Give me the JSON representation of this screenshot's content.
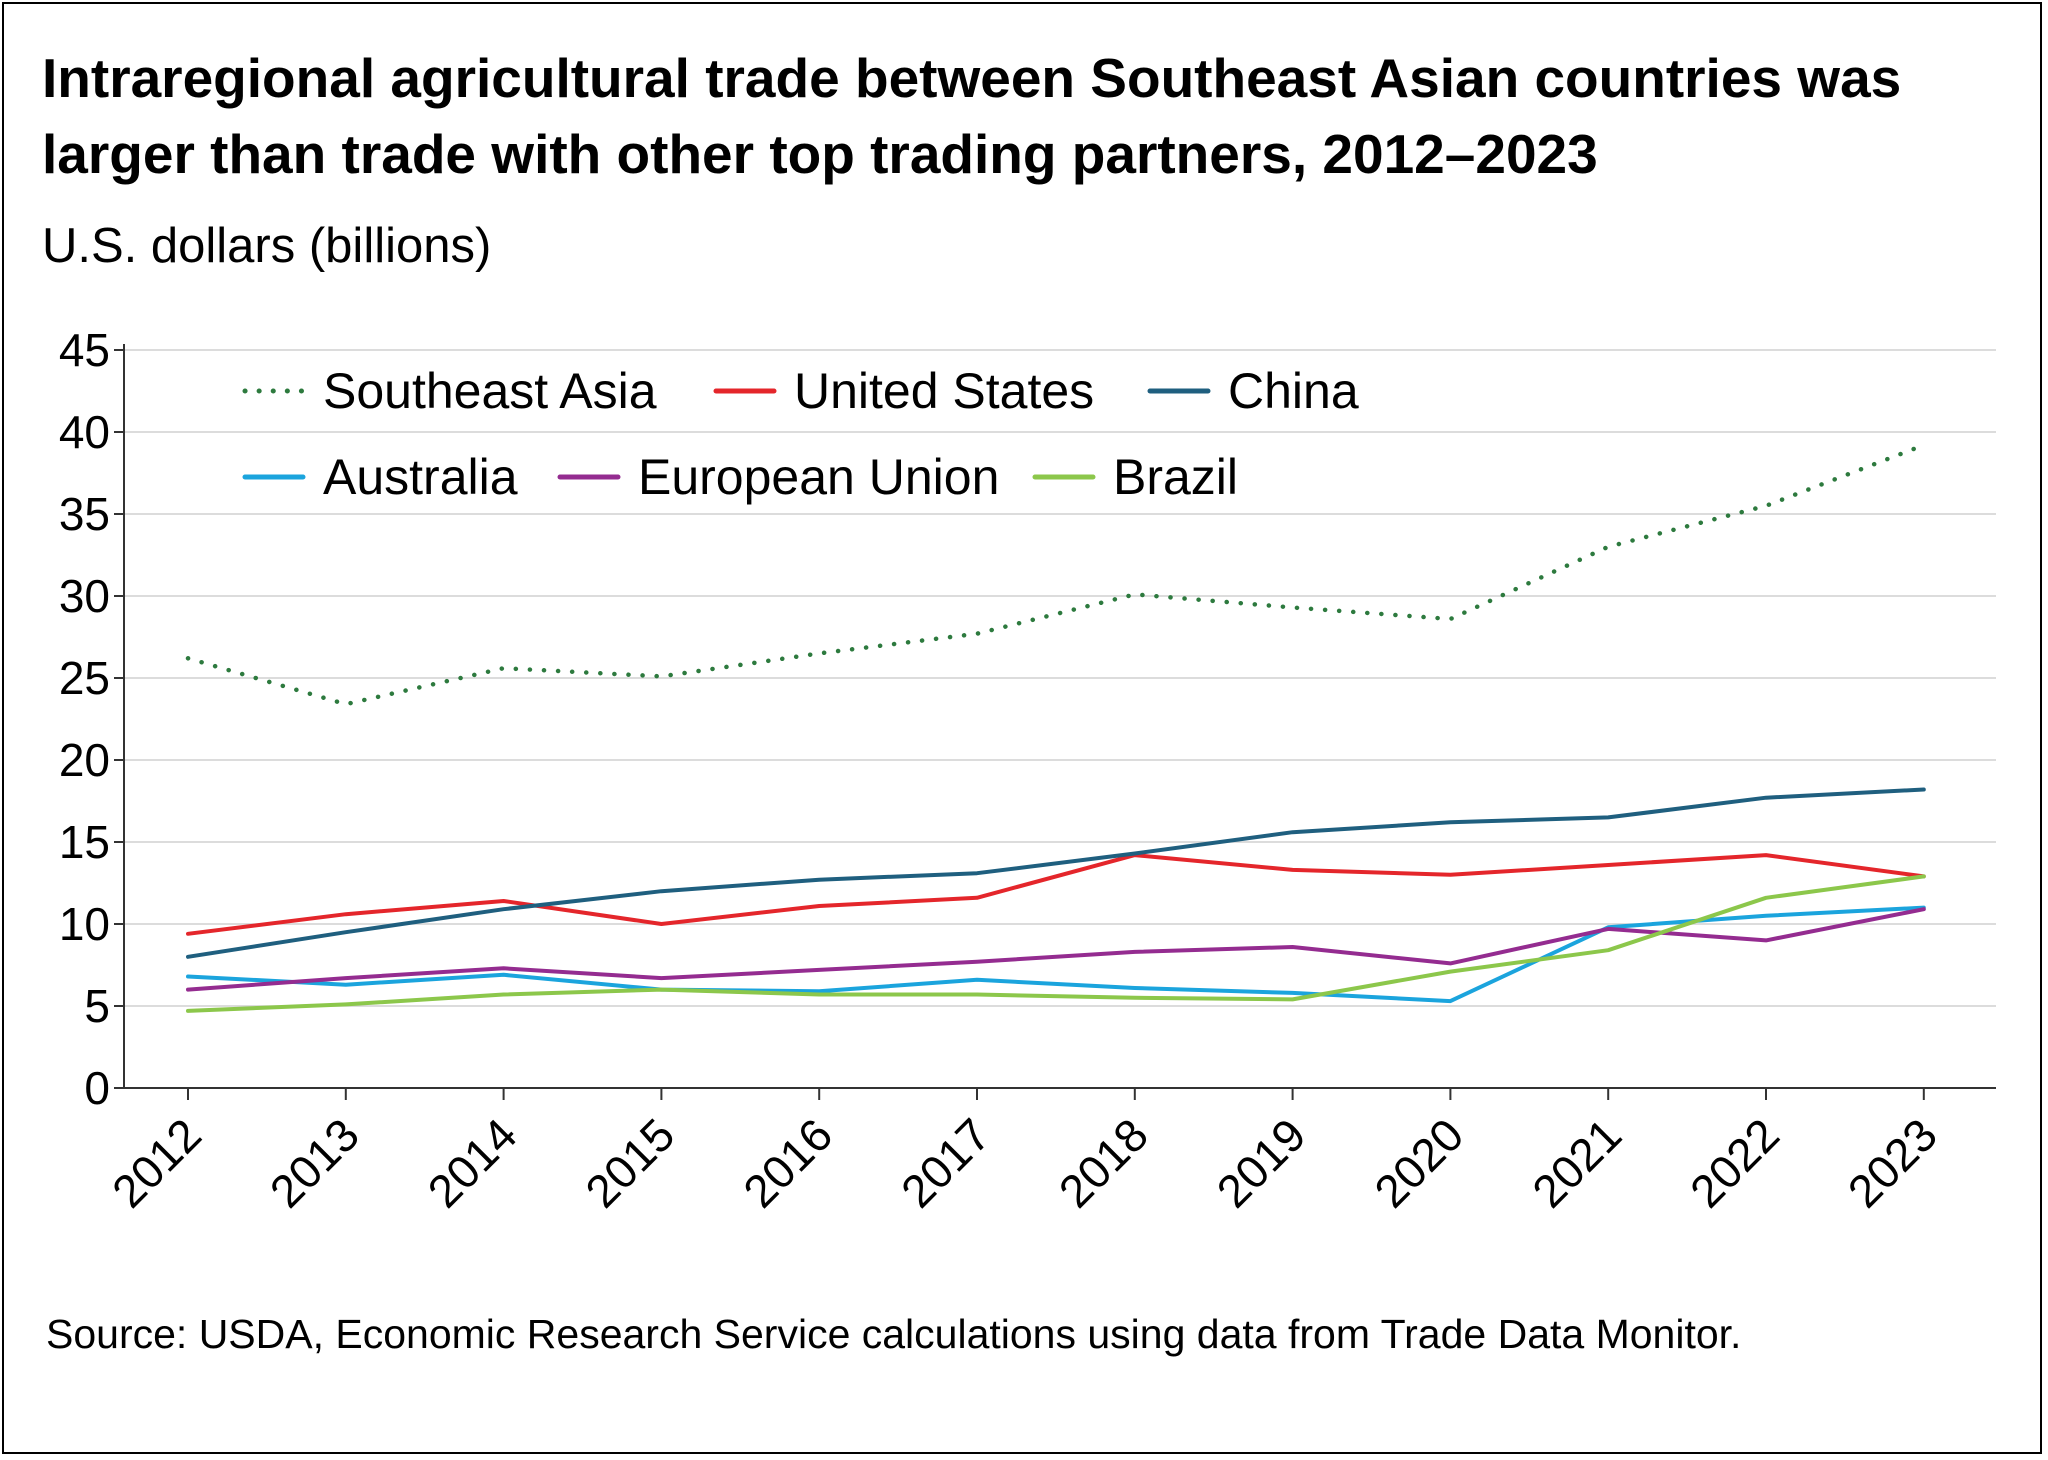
{
  "title": "Intraregional agricultural trade between Southeast Asian countries was larger than trade with other top trading partners, 2012–2023",
  "unit_label": "U.S. dollars (billions)",
  "source": "Source: USDA, Economic Research Service calculations using data from Trade Data Monitor.",
  "chart_data": {
    "type": "line",
    "title": "Intraregional agricultural trade between Southeast Asian countries was larger than trade with other top trading partners, 2012–2023",
    "xlabel": "",
    "ylabel": "U.S. dollars (billions)",
    "ylim": [
      0,
      45
    ],
    "yticks": [
      "0",
      "5",
      "10",
      "15",
      "20",
      "25",
      "30",
      "35",
      "40",
      "45"
    ],
    "categories": [
      "2012",
      "2013",
      "2014",
      "2015",
      "2016",
      "2017",
      "2018",
      "2019",
      "2020",
      "2021",
      "2022",
      "2023"
    ],
    "grid": "horizontal",
    "legend_position": "top-left",
    "series": [
      {
        "name": "Southeast Asia",
        "color": "#2d7a3e",
        "style": "dotted",
        "values": [
          26.2,
          23.4,
          25.6,
          25.1,
          26.5,
          27.7,
          30.1,
          29.3,
          28.6,
          33.0,
          35.5,
          39.2
        ]
      },
      {
        "name": "United States",
        "color": "#e4262b",
        "style": "solid",
        "values": [
          9.4,
          10.6,
          11.4,
          10.0,
          11.1,
          11.6,
          14.2,
          13.3,
          13.0,
          13.6,
          14.2,
          12.9
        ]
      },
      {
        "name": "China",
        "color": "#1f5f7f",
        "style": "solid",
        "values": [
          8.0,
          9.5,
          10.9,
          12.0,
          12.7,
          13.1,
          14.3,
          15.6,
          16.2,
          16.5,
          17.7,
          18.2
        ]
      },
      {
        "name": "Australia",
        "color": "#1ba4dd",
        "style": "solid",
        "values": [
          6.8,
          6.3,
          6.9,
          6.0,
          5.9,
          6.6,
          6.1,
          5.8,
          5.3,
          9.8,
          10.5,
          11.0
        ]
      },
      {
        "name": "European Union",
        "color": "#942c90",
        "style": "solid",
        "values": [
          6.0,
          6.7,
          7.3,
          6.7,
          7.2,
          7.7,
          8.3,
          8.6,
          7.6,
          9.7,
          9.0,
          10.9
        ]
      },
      {
        "name": "Brazil",
        "color": "#8cc74b",
        "style": "solid",
        "values": [
          4.7,
          5.1,
          5.7,
          6.0,
          5.7,
          5.7,
          5.5,
          5.4,
          7.1,
          8.4,
          11.6,
          12.9
        ]
      }
    ]
  }
}
